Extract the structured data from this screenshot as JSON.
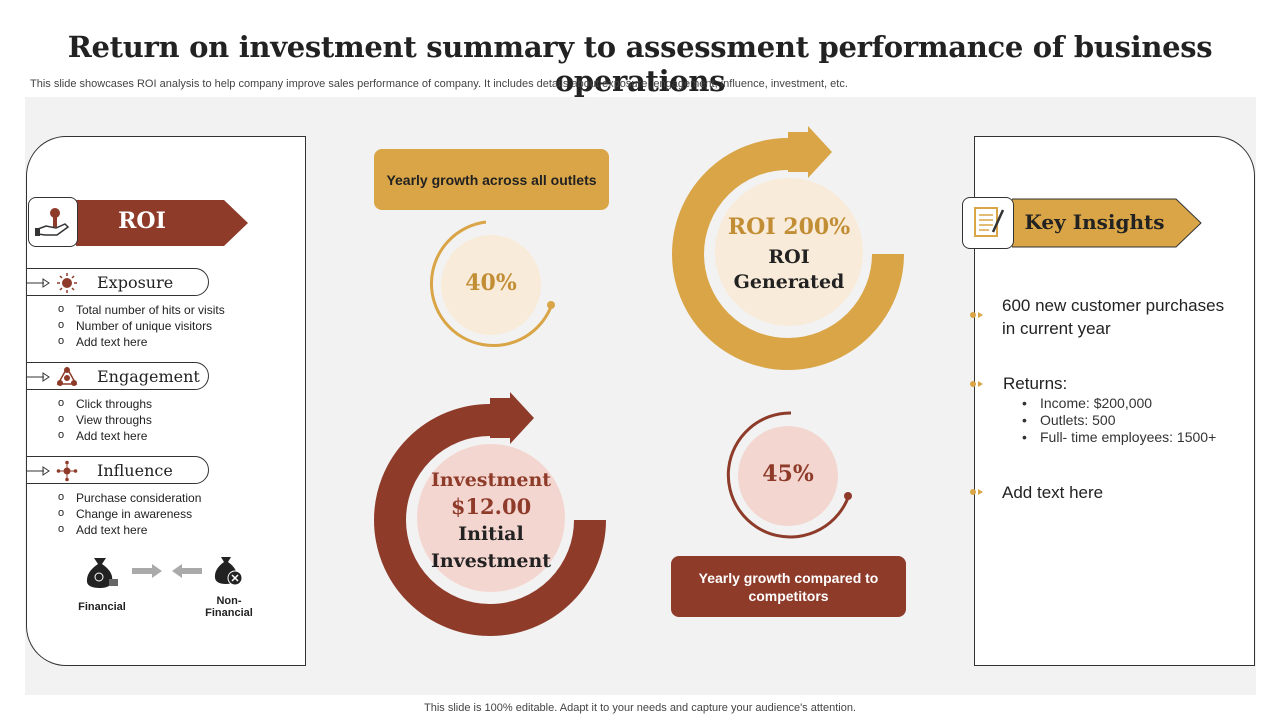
{
  "title": "Return on investment summary to assessment performance of business operations",
  "subtitle": "This slide showcases ROI analysis to help company improve sales performance of company. It includes details about exposure, engagement, influence, investment, etc.",
  "footer": "This slide is 100% editable. Adapt it to your needs and capture your audience's attention.",
  "colors": {
    "brown": "#8e3b2a",
    "gold": "#d9a546",
    "light_cream": "#f9ebd9",
    "light_pink": "#f4d6d0"
  },
  "roi": {
    "label": "ROI",
    "sections": [
      {
        "label": "Exposure",
        "icon": "sun-icon",
        "items": [
          "Total number of hits or visits",
          "Number of unique visitors",
          "Add text here"
        ]
      },
      {
        "label": "Engagement",
        "icon": "network-icon",
        "items": [
          "Click throughs",
          "View throughs",
          "Add text here"
        ]
      },
      {
        "label": "Influence",
        "icon": "influence-icon",
        "items": [
          "Purchase consideration",
          "Change in awareness",
          "Add text here"
        ]
      }
    ],
    "financial_label": "Financial",
    "non_financial_label_1": "Non-",
    "non_financial_label_2": "Financial"
  },
  "center": {
    "yearly_outlets": {
      "label": "Yearly growth across all outlets",
      "value": "40%",
      "percent": 40
    },
    "roi_generated": {
      "value": "ROI 200%",
      "line1": "ROI",
      "line2": "Generated"
    },
    "investment": {
      "line1": "Investment",
      "value": "$12.00",
      "line3": "Initial",
      "line4": "Investment"
    },
    "yearly_competitors": {
      "label": "Yearly growth compared to competitors",
      "value": "45%",
      "percent": 45
    }
  },
  "insights": {
    "label": "Key Insights",
    "point1": "600 new customer purchases in current year",
    "returns_label": "Returns:",
    "returns": [
      "Income: $200,000",
      "Outlets: 500",
      "Full- time employees: 1500+"
    ],
    "point3": "Add text here"
  }
}
